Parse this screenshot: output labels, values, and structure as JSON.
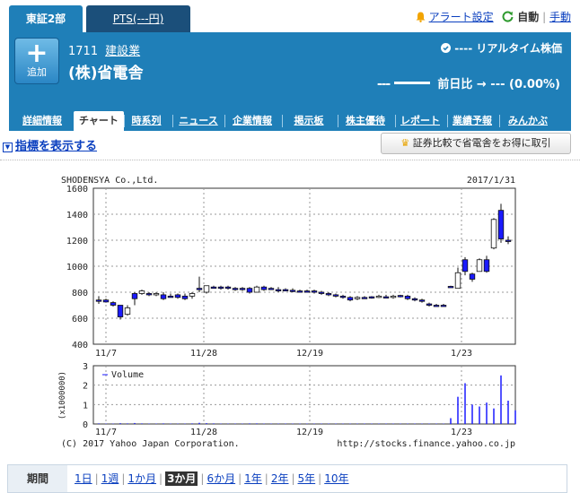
{
  "market_tabs": {
    "primary": "東証2部",
    "pts": "PTS(---円)"
  },
  "top_links": {
    "alert": "アラート設定",
    "auto": "自動",
    "manual": "手動"
  },
  "stock": {
    "add_label": "追加",
    "code": "1711",
    "industry": "建設業",
    "name": "(株)省電舎",
    "realtime_label": "---- リアルタイム株価",
    "price": "---",
    "prev_label": "前日比",
    "change": "--- (0.00%)"
  },
  "subtabs": [
    "詳細情報",
    "チャート",
    "時系列",
    "ニュース",
    "企業情報",
    "掲示板",
    "株主優待",
    "レポート",
    "業績予報",
    "みんかぶ"
  ],
  "indicator_link": "指標を表示する",
  "compare_button": "証券比較で省電舎をお得に取引",
  "chart": {
    "company_label": "SHODENSYA Co.,Ltd.",
    "date_label": "2017/1/31",
    "price_ticks": [
      "1600",
      "1400",
      "1200",
      "1000",
      "800",
      "600",
      "400"
    ],
    "x_ticks": [
      "11/7",
      "11/28",
      "12/19",
      "1/23"
    ],
    "volume_ticks": [
      "3",
      "2",
      "1",
      "0"
    ],
    "volume_unit": "(x1000000)",
    "volume_legend": "Volume",
    "copyright": "(C) 2017 Yahoo Japan Corporation.",
    "url": "http://stocks.finance.yahoo.co.jp"
  },
  "chart_data": {
    "type": "candlestick",
    "price_range": [
      400,
      1600
    ],
    "volume_range": [
      0,
      3
    ],
    "candles": [
      {
        "o": 740,
        "h": 770,
        "l": 710,
        "c": 740,
        "up": false
      },
      {
        "o": 740,
        "h": 750,
        "l": 720,
        "c": 725,
        "up": false
      },
      {
        "o": 720,
        "h": 730,
        "l": 690,
        "c": 700,
        "up": false
      },
      {
        "o": 700,
        "h": 700,
        "l": 590,
        "c": 610,
        "up": false
      },
      {
        "o": 630,
        "h": 700,
        "l": 620,
        "c": 680,
        "up": true
      },
      {
        "o": 790,
        "h": 800,
        "l": 700,
        "c": 750,
        "up": false
      },
      {
        "o": 790,
        "h": 820,
        "l": 780,
        "c": 810,
        "up": true
      },
      {
        "o": 790,
        "h": 800,
        "l": 770,
        "c": 780,
        "up": false
      },
      {
        "o": 790,
        "h": 800,
        "l": 770,
        "c": 790,
        "up": true
      },
      {
        "o": 780,
        "h": 800,
        "l": 740,
        "c": 750,
        "up": false
      },
      {
        "o": 770,
        "h": 790,
        "l": 760,
        "c": 770,
        "up": false
      },
      {
        "o": 780,
        "h": 790,
        "l": 750,
        "c": 760,
        "up": false
      },
      {
        "o": 770,
        "h": 790,
        "l": 740,
        "c": 750,
        "up": false
      },
      {
        "o": 770,
        "h": 800,
        "l": 750,
        "c": 790,
        "up": true
      },
      {
        "o": 820,
        "h": 920,
        "l": 800,
        "c": 830,
        "up": false
      },
      {
        "o": 800,
        "h": 850,
        "l": 790,
        "c": 850,
        "up": true
      },
      {
        "o": 840,
        "h": 850,
        "l": 830,
        "c": 840,
        "up": false
      },
      {
        "o": 840,
        "h": 850,
        "l": 820,
        "c": 830,
        "up": false
      },
      {
        "o": 840,
        "h": 850,
        "l": 820,
        "c": 830,
        "up": false
      },
      {
        "o": 830,
        "h": 840,
        "l": 810,
        "c": 830,
        "up": false
      },
      {
        "o": 830,
        "h": 840,
        "l": 810,
        "c": 830,
        "up": false
      },
      {
        "o": 830,
        "h": 840,
        "l": 790,
        "c": 800,
        "up": false
      },
      {
        "o": 800,
        "h": 850,
        "l": 800,
        "c": 840,
        "up": true
      },
      {
        "o": 840,
        "h": 850,
        "l": 810,
        "c": 820,
        "up": false
      },
      {
        "o": 830,
        "h": 840,
        "l": 820,
        "c": 830,
        "up": false
      },
      {
        "o": 820,
        "h": 840,
        "l": 800,
        "c": 810,
        "up": false
      },
      {
        "o": 820,
        "h": 830,
        "l": 810,
        "c": 815,
        "up": false
      },
      {
        "o": 815,
        "h": 830,
        "l": 800,
        "c": 810,
        "up": false
      },
      {
        "o": 810,
        "h": 820,
        "l": 800,
        "c": 810,
        "up": false
      },
      {
        "o": 810,
        "h": 820,
        "l": 800,
        "c": 805,
        "up": false
      },
      {
        "o": 810,
        "h": 820,
        "l": 790,
        "c": 800,
        "up": false
      },
      {
        "o": 800,
        "h": 810,
        "l": 780,
        "c": 790,
        "up": false
      },
      {
        "o": 790,
        "h": 800,
        "l": 770,
        "c": 780,
        "up": false
      },
      {
        "o": 780,
        "h": 790,
        "l": 760,
        "c": 770,
        "up": false
      },
      {
        "o": 770,
        "h": 780,
        "l": 750,
        "c": 760,
        "up": false
      },
      {
        "o": 760,
        "h": 770,
        "l": 730,
        "c": 740,
        "up": false
      },
      {
        "o": 750,
        "h": 770,
        "l": 740,
        "c": 760,
        "up": true
      },
      {
        "o": 760,
        "h": 770,
        "l": 750,
        "c": 760,
        "up": false
      },
      {
        "o": 760,
        "h": 770,
        "l": 750,
        "c": 765,
        "up": false
      },
      {
        "o": 765,
        "h": 780,
        "l": 755,
        "c": 770,
        "up": true
      },
      {
        "o": 765,
        "h": 780,
        "l": 755,
        "c": 760,
        "up": false
      },
      {
        "o": 760,
        "h": 780,
        "l": 750,
        "c": 770,
        "up": true
      },
      {
        "o": 770,
        "h": 780,
        "l": 760,
        "c": 775,
        "up": false
      },
      {
        "o": 770,
        "h": 780,
        "l": 740,
        "c": 750,
        "up": false
      },
      {
        "o": 750,
        "h": 760,
        "l": 730,
        "c": 740,
        "up": false
      },
      {
        "o": 740,
        "h": 750,
        "l": 720,
        "c": 730,
        "up": false
      },
      {
        "o": 710,
        "h": 720,
        "l": 690,
        "c": 700,
        "up": false
      },
      {
        "o": 700,
        "h": 710,
        "l": 690,
        "c": 700,
        "up": false
      },
      {
        "o": 700,
        "h": 710,
        "l": 690,
        "c": 700,
        "up": false
      },
      {
        "o": 840,
        "h": 850,
        "l": 840,
        "c": 845,
        "up": false
      },
      {
        "o": 830,
        "h": 990,
        "l": 830,
        "c": 950,
        "up": true
      },
      {
        "o": 1050,
        "h": 1070,
        "l": 930,
        "c": 960,
        "up": false
      },
      {
        "o": 940,
        "h": 950,
        "l": 880,
        "c": 900,
        "up": false
      },
      {
        "o": 960,
        "h": 1060,
        "l": 960,
        "c": 1050,
        "up": true
      },
      {
        "o": 1050,
        "h": 1080,
        "l": 950,
        "c": 960,
        "up": false
      },
      {
        "o": 1140,
        "h": 1370,
        "l": 1130,
        "c": 1360,
        "up": true
      },
      {
        "o": 1430,
        "h": 1480,
        "l": 1180,
        "c": 1210,
        "up": false
      },
      {
        "o": 1200,
        "h": 1230,
        "l": 1170,
        "c": 1190,
        "up": false
      }
    ],
    "volume": [
      0.03,
      0.02,
      0.02,
      0.04,
      0.03,
      0.05,
      0.03,
      0.02,
      0.02,
      0.03,
      0.02,
      0.02,
      0.02,
      0.03,
      0.06,
      0.04,
      0.03,
      0.02,
      0.02,
      0.02,
      0.02,
      0.03,
      0.03,
      0.02,
      0.02,
      0.02,
      0.02,
      0.02,
      0.02,
      0.02,
      0.02,
      0.02,
      0.02,
      0.02,
      0.02,
      0.02,
      0.02,
      0.02,
      0.02,
      0.02,
      0.02,
      0.02,
      0.02,
      0.02,
      0.02,
      0.02,
      0.02,
      0.02,
      0.02,
      0.3,
      1.4,
      2.1,
      1.0,
      0.9,
      1.1,
      0.8,
      2.5,
      1.2,
      0.7
    ]
  },
  "period": {
    "label": "期間",
    "links": [
      "1日",
      "1週",
      "1か月",
      "3か月",
      "6か月",
      "1年",
      "2年",
      "5年",
      "10年"
    ],
    "selected": "3か月"
  }
}
